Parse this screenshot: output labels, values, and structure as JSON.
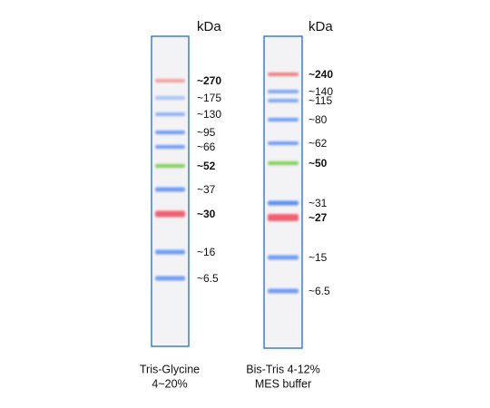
{
  "unit_label": "kDa",
  "lanes": [
    {
      "caption": [
        "Tris-Glycine",
        "4~20%"
      ],
      "bands": [
        {
          "label": "~270",
          "color": "#f2a0a0",
          "bold": true
        },
        {
          "label": "~175",
          "color": "#a9c2f2",
          "bold": false
        },
        {
          "label": "~130",
          "color": "#8fb0f2",
          "bold": false
        },
        {
          "label": "~95",
          "color": "#6f9cf2",
          "bold": false
        },
        {
          "label": "~66",
          "color": "#6f9cf2",
          "bold": false
        },
        {
          "label": "~52",
          "color": "#7fcf5a",
          "bold": true
        },
        {
          "label": "~37",
          "color": "#6f9cf2",
          "bold": false
        },
        {
          "label": "~30",
          "color": "#f06070",
          "bold": true
        },
        {
          "label": "~16",
          "color": "#6f9cf2",
          "bold": false
        },
        {
          "label": "~6.5",
          "color": "#6f9cf2",
          "bold": false
        }
      ]
    },
    {
      "caption": [
        "Bis-Tris 4-12%",
        "MES buffer"
      ],
      "bands": [
        {
          "label": "~240",
          "color": "#f07f80",
          "bold": true
        },
        {
          "label": "~140",
          "color": "#7fa6f2",
          "bold": false
        },
        {
          "label": "~115",
          "color": "#7fa6f2",
          "bold": false
        },
        {
          "label": "~80",
          "color": "#6f9cf2",
          "bold": false
        },
        {
          "label": "~62",
          "color": "#6f9cf2",
          "bold": false
        },
        {
          "label": "~50",
          "color": "#7fcf5a",
          "bold": true
        },
        {
          "label": "~31",
          "color": "#5f8ff2",
          "bold": false
        },
        {
          "label": "~27",
          "color": "#f06070",
          "bold": true
        },
        {
          "label": "~15",
          "color": "#6f9cf2",
          "bold": false
        },
        {
          "label": "~6.5",
          "color": "#6f9cf2",
          "bold": false
        }
      ]
    }
  ]
}
